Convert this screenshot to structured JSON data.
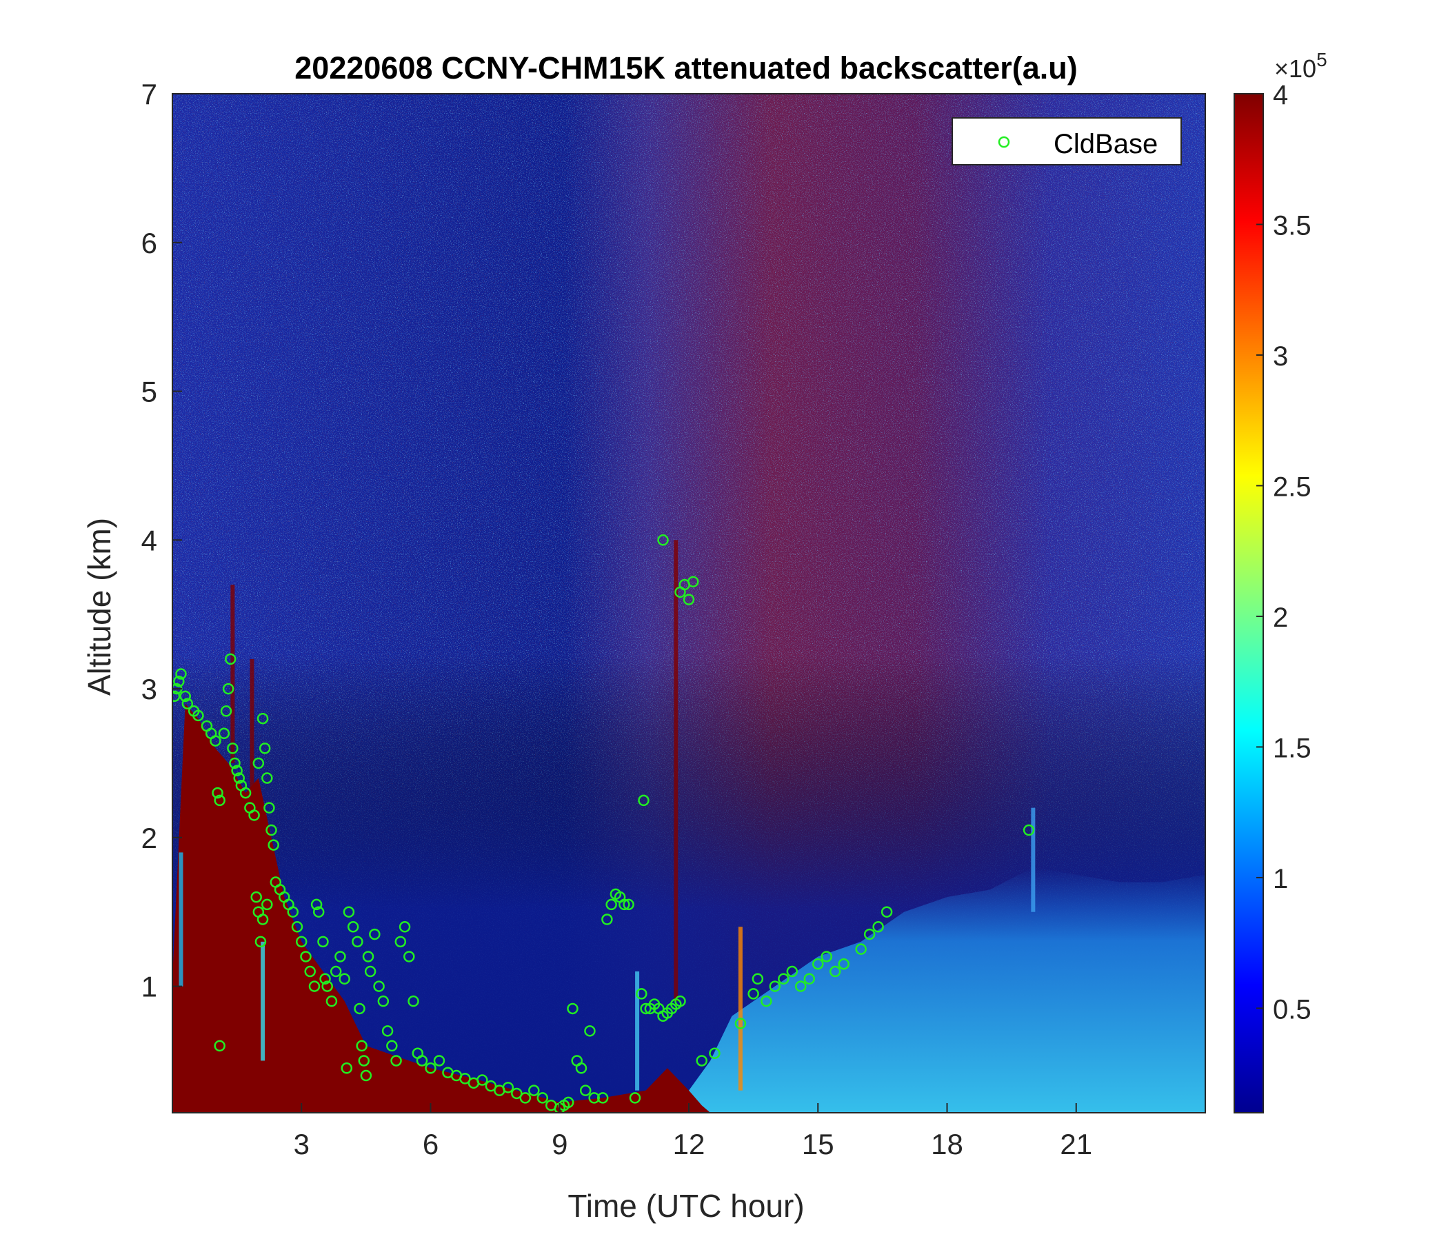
{
  "chart_data": {
    "type": "heatmap",
    "title": "20220608 CCNY-CHM15K attenuated backscatter(a.u)",
    "xlabel": "Time (UTC hour)",
    "ylabel": "Altitude (km)",
    "xlim": [
      0,
      24
    ],
    "ylim": [
      0.15,
      7
    ],
    "xticks": [
      3,
      6,
      9,
      12,
      15,
      18,
      21
    ],
    "yticks": [
      1,
      2,
      3,
      4,
      5,
      6,
      7
    ],
    "colormap": "jet",
    "colorbar": {
      "clim": [
        0.1,
        4.0
      ],
      "ticks": [
        0.5,
        1,
        1.5,
        2,
        2.5,
        3,
        3.5,
        4
      ],
      "exponent_prefix": "×10",
      "exponent": "5"
    },
    "legend": {
      "location": "top-right",
      "entries": [
        "CldBase"
      ]
    },
    "series": [
      {
        "name": "CldBase",
        "marker": "o",
        "color": "#22ee22",
        "points": [
          [
            0.05,
            2.95
          ],
          [
            0.1,
            3.0
          ],
          [
            0.15,
            3.05
          ],
          [
            0.2,
            3.1
          ],
          [
            0.3,
            2.95
          ],
          [
            0.35,
            2.9
          ],
          [
            0.5,
            2.85
          ],
          [
            0.6,
            2.82
          ],
          [
            0.8,
            2.75
          ],
          [
            0.9,
            2.7
          ],
          [
            1.0,
            2.65
          ],
          [
            1.05,
            2.3
          ],
          [
            1.1,
            2.25
          ],
          [
            1.2,
            2.7
          ],
          [
            1.25,
            2.85
          ],
          [
            1.3,
            3.0
          ],
          [
            1.35,
            3.2
          ],
          [
            1.4,
            2.6
          ],
          [
            1.45,
            2.5
          ],
          [
            1.5,
            2.45
          ],
          [
            1.55,
            2.4
          ],
          [
            1.6,
            2.35
          ],
          [
            1.7,
            2.3
          ],
          [
            1.8,
            2.2
          ],
          [
            1.9,
            2.15
          ],
          [
            2.0,
            2.5
          ],
          [
            2.1,
            2.8
          ],
          [
            2.15,
            2.6
          ],
          [
            2.2,
            2.4
          ],
          [
            2.25,
            2.2
          ],
          [
            2.3,
            2.05
          ],
          [
            2.35,
            1.95
          ],
          [
            1.1,
            0.6
          ],
          [
            1.95,
            1.6
          ],
          [
            2.0,
            1.5
          ],
          [
            2.05,
            1.3
          ],
          [
            2.1,
            1.45
          ],
          [
            2.2,
            1.55
          ],
          [
            2.4,
            1.7
          ],
          [
            2.5,
            1.65
          ],
          [
            2.6,
            1.6
          ],
          [
            2.7,
            1.55
          ],
          [
            2.8,
            1.5
          ],
          [
            2.9,
            1.4
          ],
          [
            3.0,
            1.3
          ],
          [
            3.1,
            1.2
          ],
          [
            3.2,
            1.1
          ],
          [
            3.3,
            1.0
          ],
          [
            3.35,
            1.55
          ],
          [
            3.4,
            1.5
          ],
          [
            3.5,
            1.3
          ],
          [
            3.55,
            1.05
          ],
          [
            3.6,
            1.0
          ],
          [
            3.7,
            0.9
          ],
          [
            3.8,
            1.1
          ],
          [
            3.9,
            1.2
          ],
          [
            4.0,
            1.05
          ],
          [
            4.05,
            0.45
          ],
          [
            4.1,
            1.5
          ],
          [
            4.2,
            1.4
          ],
          [
            4.3,
            1.3
          ],
          [
            4.35,
            0.85
          ],
          [
            4.4,
            0.6
          ],
          [
            4.45,
            0.5
          ],
          [
            4.5,
            0.4
          ],
          [
            4.55,
            1.2
          ],
          [
            4.6,
            1.1
          ],
          [
            4.7,
            1.35
          ],
          [
            4.8,
            1.0
          ],
          [
            4.9,
            0.9
          ],
          [
            5.0,
            0.7
          ],
          [
            5.1,
            0.6
          ],
          [
            5.2,
            0.5
          ],
          [
            5.3,
            1.3
          ],
          [
            5.4,
            1.4
          ],
          [
            5.5,
            1.2
          ],
          [
            5.6,
            0.9
          ],
          [
            5.7,
            0.55
          ],
          [
            5.8,
            0.5
          ],
          [
            6.0,
            0.45
          ],
          [
            6.2,
            0.5
          ],
          [
            6.4,
            0.42
          ],
          [
            6.6,
            0.4
          ],
          [
            6.8,
            0.38
          ],
          [
            7.0,
            0.35
          ],
          [
            7.2,
            0.37
          ],
          [
            7.4,
            0.33
          ],
          [
            7.6,
            0.3
          ],
          [
            7.8,
            0.32
          ],
          [
            8.0,
            0.28
          ],
          [
            8.2,
            0.25
          ],
          [
            8.4,
            0.3
          ],
          [
            8.6,
            0.25
          ],
          [
            8.8,
            0.2
          ],
          [
            9.0,
            0.18
          ],
          [
            9.1,
            0.2
          ],
          [
            9.2,
            0.22
          ],
          [
            9.3,
            0.85
          ],
          [
            9.4,
            0.5
          ],
          [
            9.5,
            0.45
          ],
          [
            9.6,
            0.3
          ],
          [
            9.7,
            0.7
          ],
          [
            9.8,
            0.25
          ],
          [
            10.0,
            0.25
          ],
          [
            10.1,
            1.45
          ],
          [
            10.2,
            1.55
          ],
          [
            10.3,
            1.62
          ],
          [
            10.4,
            1.6
          ],
          [
            10.5,
            1.55
          ],
          [
            10.6,
            1.55
          ],
          [
            10.75,
            0.25
          ],
          [
            10.9,
            0.95
          ],
          [
            11.0,
            0.85
          ],
          [
            11.1,
            0.85
          ],
          [
            11.2,
            0.88
          ],
          [
            11.3,
            0.85
          ],
          [
            11.4,
            0.8
          ],
          [
            11.5,
            0.82
          ],
          [
            11.6,
            0.85
          ],
          [
            11.7,
            0.88
          ],
          [
            11.8,
            0.9
          ],
          [
            10.95,
            2.25
          ],
          [
            11.4,
            4.0
          ],
          [
            11.8,
            3.65
          ],
          [
            11.9,
            3.7
          ],
          [
            12.0,
            3.6
          ],
          [
            12.1,
            3.72
          ],
          [
            12.3,
            0.5
          ],
          [
            12.6,
            0.55
          ],
          [
            13.2,
            0.75
          ],
          [
            13.5,
            0.95
          ],
          [
            13.6,
            1.05
          ],
          [
            13.8,
            0.9
          ],
          [
            14.0,
            1.0
          ],
          [
            14.2,
            1.05
          ],
          [
            14.4,
            1.1
          ],
          [
            14.6,
            1.0
          ],
          [
            14.8,
            1.05
          ],
          [
            15.0,
            1.15
          ],
          [
            15.2,
            1.2
          ],
          [
            15.4,
            1.1
          ],
          [
            15.6,
            1.15
          ],
          [
            16.0,
            1.25
          ],
          [
            16.2,
            1.35
          ],
          [
            16.4,
            1.4
          ],
          [
            16.6,
            1.5
          ],
          [
            19.9,
            2.05
          ]
        ]
      }
    ]
  }
}
